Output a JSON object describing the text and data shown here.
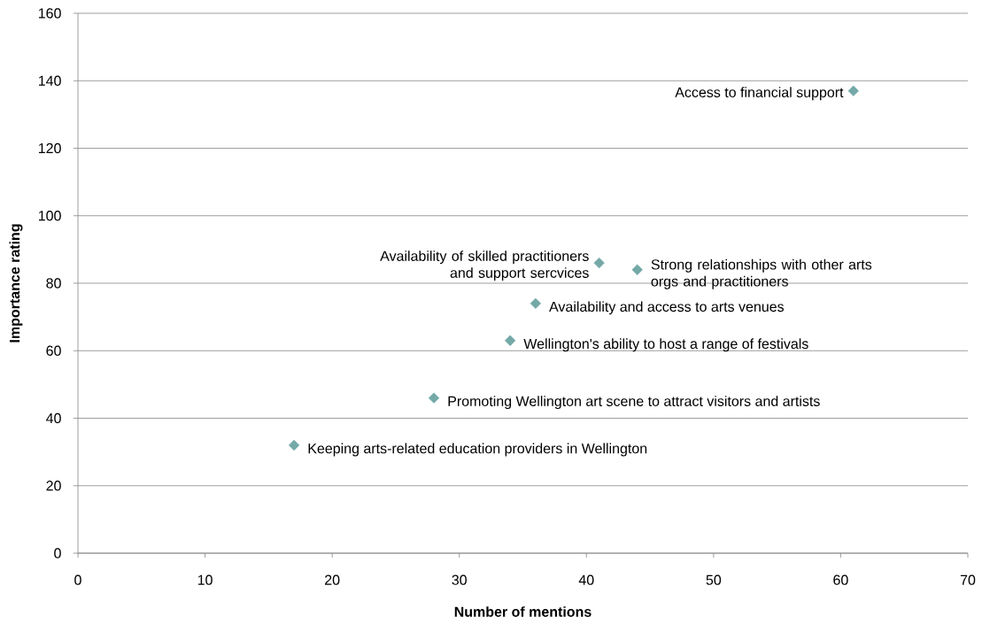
{
  "chart_data": {
    "type": "scatter",
    "xlabel": "Number of mentions",
    "ylabel": "Importance rating",
    "x": [
      61,
      41,
      44,
      36,
      34,
      28,
      17
    ],
    "values": [
      137,
      86,
      84,
      74,
      63,
      46,
      32
    ],
    "color": "#74a9a8",
    "marker": "diamond",
    "xlim": [
      0,
      70
    ],
    "ylim": [
      0,
      160
    ],
    "xticks": [
      0,
      10,
      20,
      30,
      40,
      50,
      60,
      70
    ],
    "yticks": [
      0,
      20,
      40,
      60,
      80,
      100,
      120,
      140,
      160
    ],
    "grid": "y",
    "annotations": [
      {
        "text": "Access to financial support",
        "x": 61,
        "y": 137
      },
      {
        "text": "Availability of skilled practitioners and support sercvices",
        "x": 41,
        "y": 86
      },
      {
        "text": "Strong relationships with other arts orgs and practitioners",
        "x": 44,
        "y": 84
      },
      {
        "text": "Availability and access to arts venues",
        "x": 36,
        "y": 74
      },
      {
        "text": "Wellington's ability to host a range of festivals",
        "x": 34,
        "y": 63
      },
      {
        "text": "Promoting Wellington art scene to attract visitors and artists",
        "x": 28,
        "y": 46
      },
      {
        "text": "Keeping arts-related education providers in Wellington",
        "x": 17,
        "y": 32
      }
    ]
  }
}
